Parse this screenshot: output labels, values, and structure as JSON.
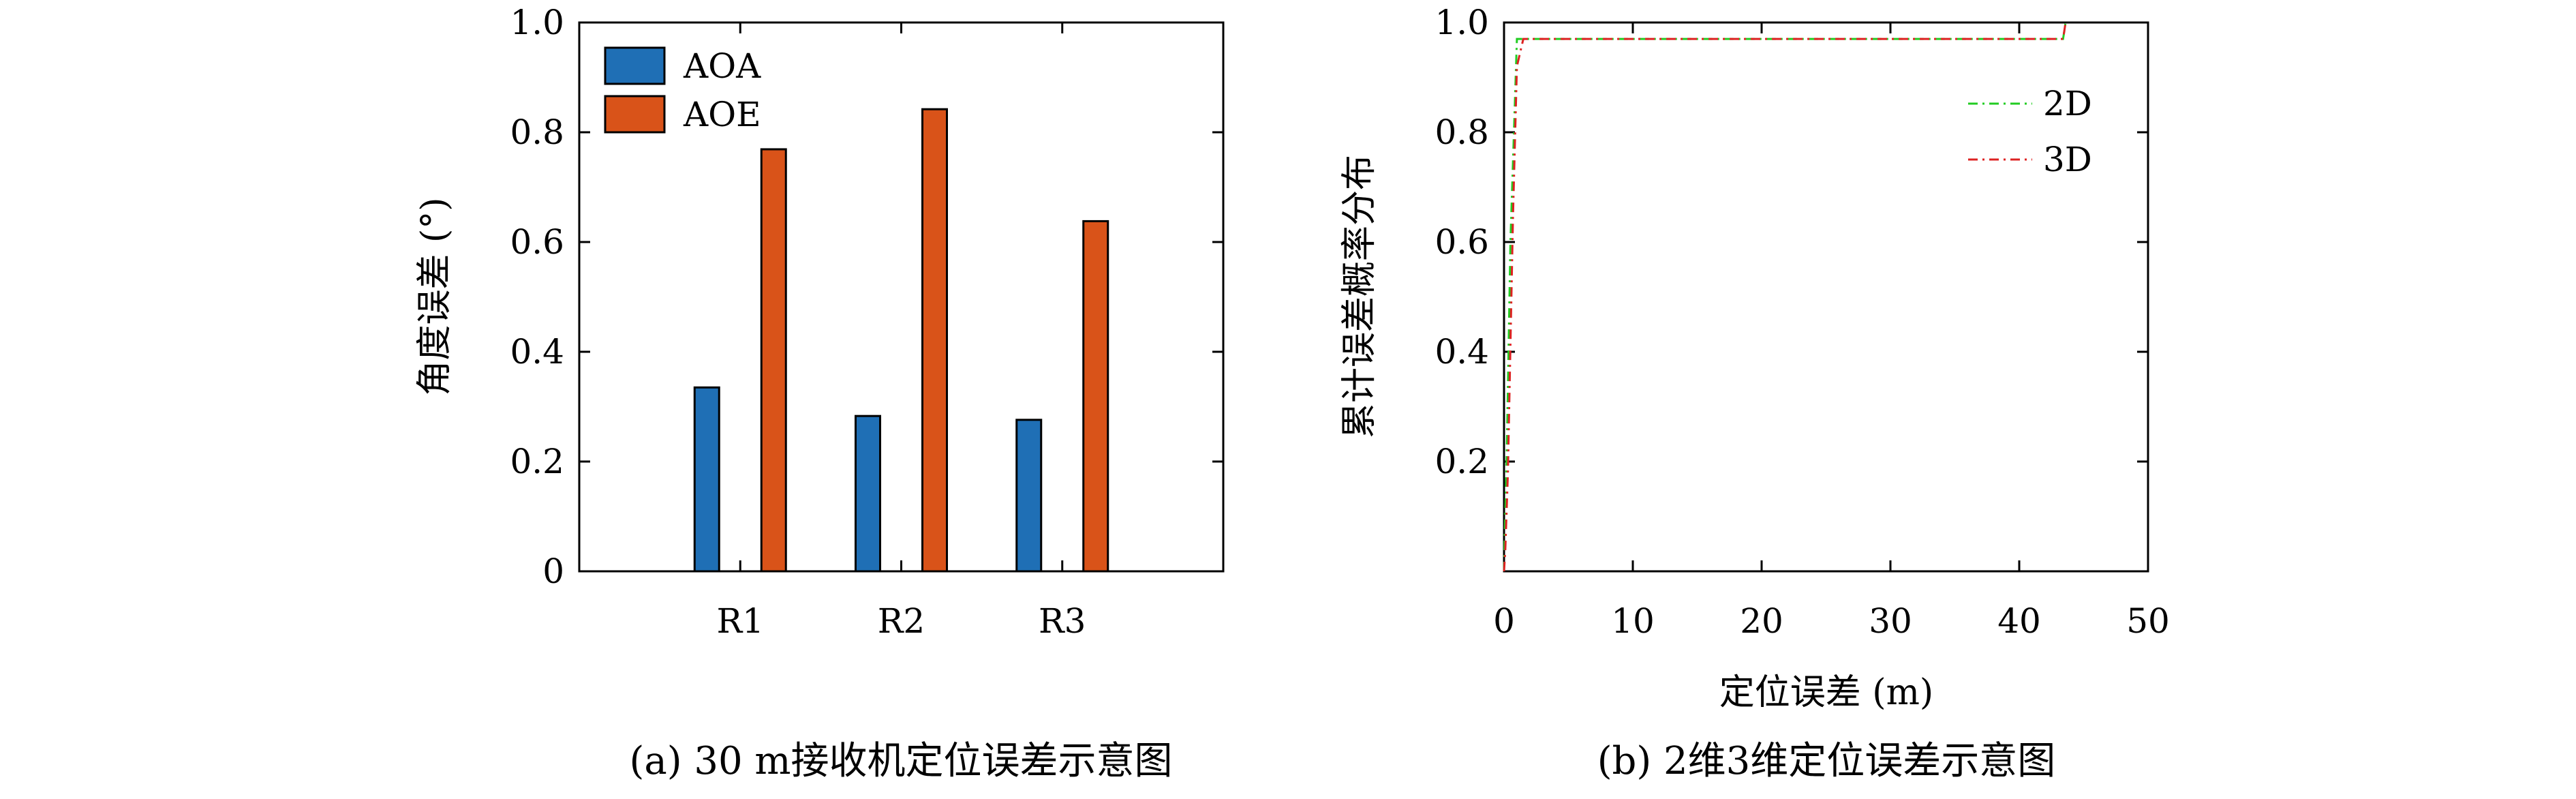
{
  "chart_data": [
    {
      "type": "bar",
      "caption": "(a) 30 m接收机定位误差示意图",
      "title": "",
      "xlabel": "",
      "ylabel": "角度误差 (°)",
      "categories": [
        "R1",
        "R2",
        "R3"
      ],
      "series": [
        {
          "name": "AOA",
          "color": "#1f6fb5",
          "values": [
            0.335,
            0.283,
            0.276
          ]
        },
        {
          "name": "AOE",
          "color": "#d95319",
          "values": [
            0.769,
            0.842,
            0.638
          ]
        }
      ],
      "ylim": [
        0,
        1.0
      ],
      "yticks": [
        "0",
        "0.2",
        "0.4",
        "0.6",
        "0.8",
        "1.0"
      ],
      "legend": "top-left",
      "grid": false
    },
    {
      "type": "line",
      "caption": "(b) 2维3维定位误差示意图",
      "title": "",
      "xlabel": "定位误差 (m)",
      "ylabel": "累计误差概率分布",
      "xlim": [
        0,
        50
      ],
      "ylim": [
        0,
        1.0
      ],
      "xticks": [
        "0",
        "10",
        "20",
        "30",
        "40",
        "50"
      ],
      "yticks": [
        "0.2",
        "0.4",
        "0.6",
        "0.8",
        "1.0"
      ],
      "series": [
        {
          "name": "2D",
          "color": "#22cc22",
          "style": "dash-dot",
          "x": [
            0,
            0.05,
            0.2,
            0.5,
            1.0,
            43.4,
            43.5,
            43.6
          ],
          "y": [
            0,
            0.06,
            0.2,
            0.6,
            0.97,
            0.97,
            0.985,
            1.0
          ]
        },
        {
          "name": "3D",
          "color": "#dd2222",
          "style": "dash-dot",
          "x": [
            0,
            0.1,
            0.3,
            0.7,
            1.0,
            1.5,
            43.4,
            43.5,
            43.6
          ],
          "y": [
            0,
            0.04,
            0.18,
            0.65,
            0.92,
            0.97,
            0.97,
            0.985,
            1.0
          ]
        }
      ],
      "legend": "top-right",
      "grid": false
    }
  ]
}
